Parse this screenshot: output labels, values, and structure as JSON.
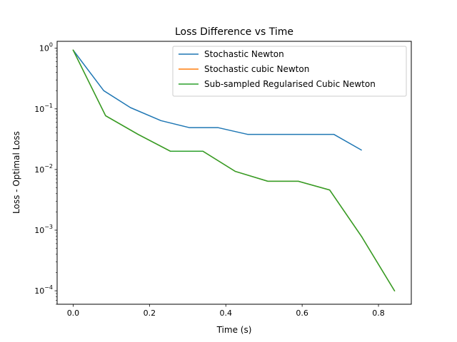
{
  "chart_data": {
    "type": "line",
    "title": "Loss Difference vs Time",
    "xlabel": "Time (s)",
    "ylabel": "Loss - Optimal Loss",
    "yscale": "log",
    "xlim": [
      -0.042,
      0.886
    ],
    "ylim": [
      6e-05,
      1.3
    ],
    "xticks": [
      {
        "value": 0.0,
        "label": "0.0"
      },
      {
        "value": 0.2,
        "label": "0.2"
      },
      {
        "value": 0.4,
        "label": "0.4"
      },
      {
        "value": 0.6,
        "label": "0.6"
      },
      {
        "value": 0.8,
        "label": "0.8"
      }
    ],
    "yticks": [
      {
        "value": 1,
        "base": "10",
        "exp": "0"
      },
      {
        "value": 0.1,
        "base": "10",
        "exp": "−1"
      },
      {
        "value": 0.01,
        "base": "10",
        "exp": "−2"
      },
      {
        "value": 0.001,
        "base": "10",
        "exp": "−3"
      },
      {
        "value": 0.0001,
        "base": "10",
        "exp": "−4"
      }
    ],
    "grid": false,
    "legend": "top-right",
    "series": [
      {
        "name": "Stochastic Newton",
        "color": "#1f77b4",
        "x": [
          0.0,
          0.08,
          0.15,
          0.23,
          0.305,
          0.38,
          0.457,
          0.535,
          0.61,
          0.683,
          0.755
        ],
        "y": [
          0.93,
          0.2,
          0.105,
          0.064,
          0.049,
          0.049,
          0.038,
          0.038,
          0.038,
          0.038,
          0.021
        ]
      },
      {
        "name": "Stochastic cubic Newton",
        "color": "#ff7f0e",
        "x": [
          0.0,
          0.085,
          0.17,
          0.255,
          0.34,
          0.425,
          0.51,
          0.59,
          0.672,
          0.756,
          0.842
        ],
        "y": [
          0.93,
          0.077,
          0.038,
          0.02,
          0.02,
          0.0093,
          0.0064,
          0.0064,
          0.0046,
          0.00078,
          0.0001
        ]
      },
      {
        "name": "Sub-sampled Regularised Cubic Newton",
        "color": "#2ca02c",
        "x": [
          0.0,
          0.085,
          0.17,
          0.255,
          0.34,
          0.425,
          0.51,
          0.59,
          0.672,
          0.756,
          0.842
        ],
        "y": [
          0.93,
          0.077,
          0.038,
          0.02,
          0.02,
          0.0093,
          0.0064,
          0.0064,
          0.0046,
          0.00078,
          0.0001
        ]
      }
    ]
  }
}
